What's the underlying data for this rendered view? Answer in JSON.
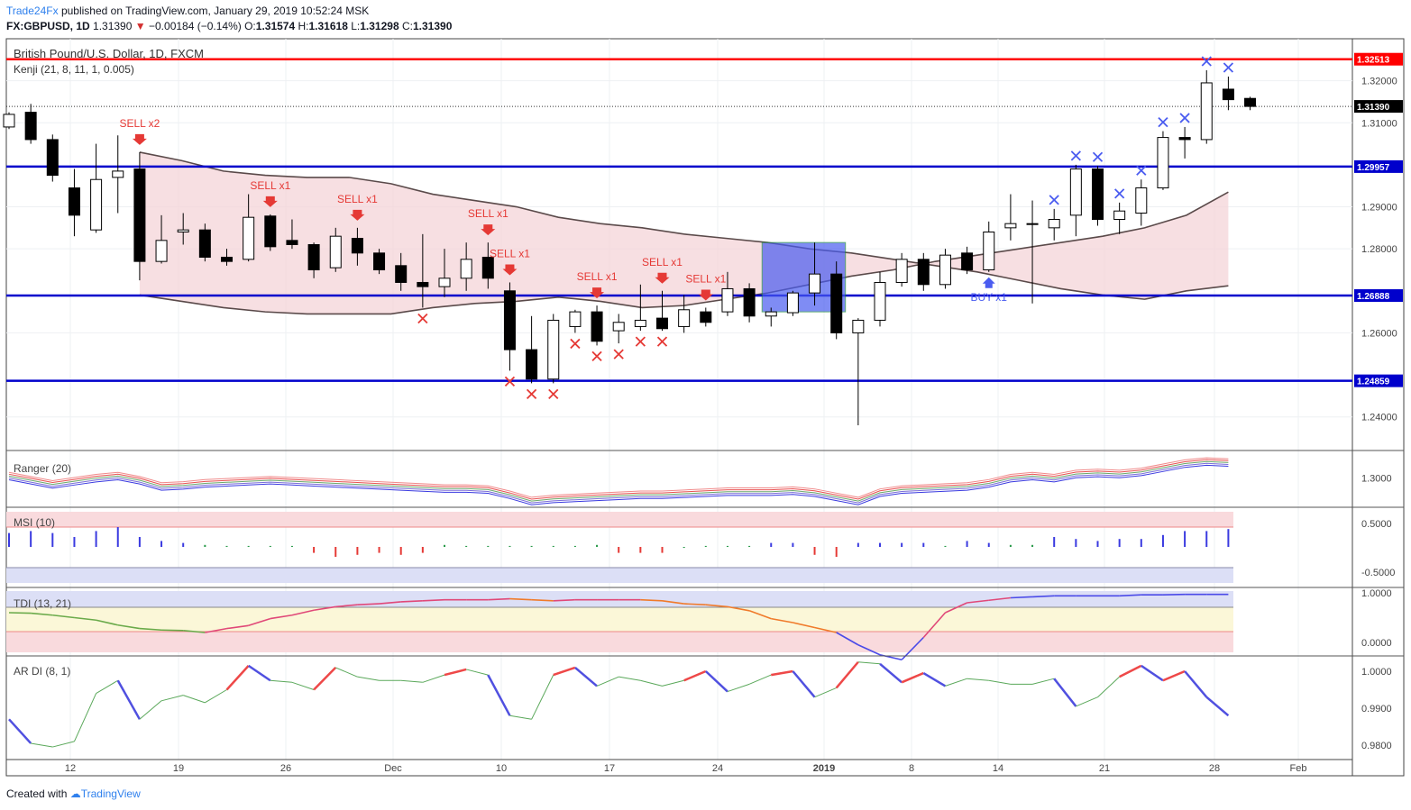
{
  "header": {
    "publisher": "Trade24Fx",
    "published_text": "published on TradingView.com, January 29, 2019 10:52:24 MSK",
    "symbol": "FX:GBPUSD, 1D",
    "last": "1.31390",
    "change": "−0.00184 (−0.14%)",
    "open_label": "O:",
    "open": "1.31574",
    "high_label": "H:",
    "high": "1.31618",
    "low_label": "L:",
    "low": "1.31298",
    "close_label": "C:",
    "close": "1.31390"
  },
  "footer": {
    "created_with": "Created with",
    "brand": "TradingView"
  },
  "colors": {
    "bull": "#ffffff",
    "bear": "#000000",
    "level_red": "#ff0000",
    "level_blue": "#0000cc",
    "sell": "#e53935",
    "buy": "#4a5cf0",
    "kenji_upper": "#f4d4d8",
    "kenji_lower": "#d6d8f5"
  },
  "chart_data": {
    "type": "candlestick",
    "title": "British Pound/U.S. Dollar, 1D, FXCM",
    "indicator_label": "Kenji (21, 8, 11, 1, 0.005)",
    "x_tick_labels": [
      "12",
      "19",
      "26",
      "Dec",
      "10",
      "17",
      "24",
      "2019",
      "8",
      "14",
      "21",
      "28",
      "Feb"
    ],
    "ylim": [
      1.232,
      1.33
    ],
    "y_ticks": [
      "1.32000",
      "1.31000",
      "1.29000",
      "1.28000",
      "1.26000",
      "1.24000"
    ],
    "horizontal_levels": [
      {
        "value": 1.32513,
        "label": "1.32513",
        "color": "red"
      },
      {
        "value": 1.29957,
        "label": "1.29957",
        "color": "blue"
      },
      {
        "value": 1.26888,
        "label": "1.26888",
        "color": "blue"
      },
      {
        "value": 1.24859,
        "label": "1.24859",
        "color": "blue"
      }
    ],
    "last_price": {
      "value": 1.3139,
      "label": "1.31390"
    },
    "candles": [
      [
        1.309,
        1.3125,
        1.3085,
        1.312
      ],
      [
        1.3125,
        1.3145,
        1.305,
        1.306
      ],
      [
        1.306,
        1.3072,
        1.296,
        1.2975
      ],
      [
        1.2945,
        1.299,
        1.283,
        1.288
      ],
      [
        1.2845,
        1.305,
        1.2838,
        1.2965
      ],
      [
        1.297,
        1.307,
        1.2885,
        1.2985
      ],
      [
        1.299,
        1.303,
        1.2725,
        1.277
      ],
      [
        1.277,
        1.288,
        1.2765,
        1.282
      ],
      [
        1.284,
        1.2885,
        1.281,
        1.2845
      ],
      [
        1.2845,
        1.286,
        1.277,
        1.278
      ],
      [
        1.278,
        1.28,
        1.276,
        1.277
      ],
      [
        1.2775,
        1.293,
        1.277,
        1.2875
      ],
      [
        1.2878,
        1.2882,
        1.2795,
        1.2805
      ],
      [
        1.282,
        1.287,
        1.28,
        1.281
      ],
      [
        1.281,
        1.2815,
        1.273,
        1.275
      ],
      [
        1.2755,
        1.285,
        1.2745,
        1.283
      ],
      [
        1.2825,
        1.285,
        1.276,
        1.279
      ],
      [
        1.279,
        1.28,
        1.274,
        1.275
      ],
      [
        1.276,
        1.279,
        1.27,
        1.272
      ],
      [
        1.272,
        1.2835,
        1.266,
        1.271
      ],
      [
        1.271,
        1.28,
        1.2685,
        1.273
      ],
      [
        1.273,
        1.2815,
        1.27,
        1.2775
      ],
      [
        1.278,
        1.2815,
        1.2705,
        1.273
      ],
      [
        1.27,
        1.272,
        1.251,
        1.256
      ],
      [
        1.256,
        1.264,
        1.248,
        1.249
      ],
      [
        1.249,
        1.2645,
        1.248,
        1.263
      ],
      [
        1.2615,
        1.2655,
        1.26,
        1.265
      ],
      [
        1.265,
        1.2665,
        1.257,
        1.258
      ],
      [
        1.2605,
        1.2645,
        1.2575,
        1.2625
      ],
      [
        1.2615,
        1.2715,
        1.2605,
        1.263
      ],
      [
        1.2635,
        1.27,
        1.2605,
        1.261
      ],
      [
        1.2615,
        1.269,
        1.26,
        1.2655
      ],
      [
        1.265,
        1.266,
        1.2615,
        1.2625
      ],
      [
        1.265,
        1.2745,
        1.264,
        1.2705
      ],
      [
        1.2705,
        1.2718,
        1.2625,
        1.264
      ],
      [
        1.264,
        1.266,
        1.2615,
        1.265
      ],
      [
        1.2648,
        1.27,
        1.264,
        1.2695
      ],
      [
        1.2695,
        1.2815,
        1.2665,
        1.274
      ],
      [
        1.274,
        1.277,
        1.2585,
        1.26
      ],
      [
        1.26,
        1.2635,
        1.238,
        1.263
      ],
      [
        1.263,
        1.2745,
        1.2615,
        1.272
      ],
      [
        1.272,
        1.279,
        1.271,
        1.2775
      ],
      [
        1.2775,
        1.279,
        1.27,
        1.2715
      ],
      [
        1.2715,
        1.28,
        1.2705,
        1.2785
      ],
      [
        1.279,
        1.2805,
        1.274,
        1.275
      ],
      [
        1.275,
        1.2865,
        1.2745,
        1.284
      ],
      [
        1.285,
        1.293,
        1.282,
        1.286
      ],
      [
        1.286,
        1.2915,
        1.267,
        1.286
      ],
      [
        1.285,
        1.2895,
        1.282,
        1.287
      ],
      [
        1.288,
        1.3,
        1.283,
        1.299
      ],
      [
        1.299,
        1.2997,
        1.2855,
        1.287
      ],
      [
        1.287,
        1.291,
        1.2835,
        1.289
      ],
      [
        1.2885,
        1.2965,
        1.2855,
        1.2945
      ],
      [
        1.2945,
        1.308,
        1.294,
        1.3065
      ],
      [
        1.3065,
        1.309,
        1.3015,
        1.306
      ],
      [
        1.306,
        1.3225,
        1.305,
        1.3195
      ],
      [
        1.318,
        1.321,
        1.313,
        1.3155
      ],
      [
        1.3158,
        1.3162,
        1.313,
        1.3139
      ]
    ],
    "kenji_upper": [
      1.303,
      1.301,
      1.2985,
      1.2975,
      1.297,
      1.297,
      1.2955,
      1.293,
      1.2915,
      1.29,
      1.2875,
      1.286,
      1.285,
      1.2835,
      1.2825,
      1.2815,
      1.28,
      1.279,
      1.2775,
      1.276,
      1.2745,
      1.2725,
      1.2705,
      1.269,
      1.268,
      1.27,
      1.2712
    ],
    "kenji_lower": [
      1.269,
      1.2675,
      1.266,
      1.265,
      1.2645,
      1.2645,
      1.2645,
      1.266,
      1.267,
      1.2675,
      1.2685,
      1.2675,
      1.266,
      1.2665,
      1.268,
      1.2695,
      1.2715,
      1.2735,
      1.275,
      1.277,
      1.2785,
      1.28,
      1.2815,
      1.283,
      1.285,
      1.288,
      1.2935
    ],
    "signals": [
      {
        "label": "SELL x2",
        "type": "sell",
        "bar": 6
      },
      {
        "label": "SELL x1",
        "type": "sell",
        "bar": 12
      },
      {
        "label": "SELL x1",
        "type": "sell",
        "bar": 16
      },
      {
        "label": "SELL x1",
        "type": "sell",
        "bar": 22
      },
      {
        "label": "SELL x1",
        "type": "sell",
        "bar": 23
      },
      {
        "label": "SELL x1",
        "type": "sell",
        "bar": 27
      },
      {
        "label": "SELL x1",
        "type": "sell",
        "bar": 30
      },
      {
        "label": "SELL x1",
        "type": "sell",
        "bar": 32
      },
      {
        "label": "BUY x1",
        "type": "buy",
        "bar": 45
      }
    ],
    "highlight_box": {
      "bar_from": 35,
      "bar_to": 38,
      "high": 1.2815,
      "low": 1.265
    },
    "panes": [
      {
        "name": "Ranger (20)",
        "ticks": [
          "1.3000"
        ]
      },
      {
        "name": "MSI (10)",
        "ticks": [
          "0.5000",
          "-0.5000"
        ]
      },
      {
        "name": "TDI (13, 21)",
        "ticks": [
          "1.0000",
          "0.0000"
        ]
      },
      {
        "name": "AR DI (8, 1)",
        "ticks": [
          "1.0000",
          "0.9900",
          "0.9800"
        ]
      }
    ],
    "ranger": [
      1.301,
      1.299,
      1.297,
      1.2985,
      1.3,
      1.301,
      1.299,
      1.296,
      1.2965,
      1.2975,
      1.298,
      1.2985,
      1.299,
      1.2985,
      1.298,
      1.2975,
      1.297,
      1.2965,
      1.296,
      1.2955,
      1.295,
      1.295,
      1.2945,
      1.292,
      1.289,
      1.29,
      1.2905,
      1.291,
      1.2915,
      1.292,
      1.292,
      1.2925,
      1.293,
      1.2935,
      1.2935,
      1.2935,
      1.294,
      1.293,
      1.291,
      1.289,
      1.293,
      1.2945,
      1.295,
      1.2955,
      1.296,
      1.2975,
      1.3,
      1.301,
      1.3,
      1.302,
      1.3025,
      1.302,
      1.303,
      1.305,
      1.307,
      1.308,
      1.3075
    ],
    "msi": [
      0.7,
      0.8,
      0.7,
      0.5,
      0.8,
      1.0,
      0.5,
      0.3,
      0.2,
      0.1,
      0.05,
      0.05,
      0.05,
      0.05,
      -0.3,
      -0.5,
      -0.4,
      -0.3,
      -0.4,
      -0.3,
      0.1,
      0.05,
      0.05,
      0.05,
      0.05,
      0.05,
      0.05,
      0.1,
      -0.3,
      -0.3,
      -0.3,
      -0.05,
      0.05,
      0.05,
      0.05,
      0.2,
      0.2,
      -0.4,
      -0.5,
      0.2,
      0.2,
      0.2,
      0.2,
      0.05,
      0.3,
      0.2,
      0.1,
      0.1,
      0.5,
      0.4,
      0.3,
      0.4,
      0.4,
      0.6,
      0.8,
      0.8,
      0.9
    ],
    "tdi": [
      0.6,
      0.59,
      0.55,
      0.5,
      0.45,
      0.35,
      0.28,
      0.25,
      0.24,
      0.2,
      0.28,
      0.34,
      0.48,
      0.55,
      0.65,
      0.72,
      0.76,
      0.78,
      0.82,
      0.84,
      0.86,
      0.86,
      0.86,
      0.88,
      0.86,
      0.84,
      0.86,
      0.86,
      0.86,
      0.86,
      0.84,
      0.78,
      0.76,
      0.72,
      0.64,
      0.48,
      0.4,
      0.3,
      0.2,
      -0.05,
      -0.25,
      -0.35,
      0.1,
      0.6,
      0.8,
      0.85,
      0.9,
      0.92,
      0.94,
      0.94,
      0.94,
      0.94,
      0.96,
      0.96,
      0.97,
      0.97,
      0.97
    ],
    "ardi": [
      0.987,
      0.9805,
      0.9795,
      0.981,
      0.994,
      0.9975,
      0.987,
      0.992,
      0.9935,
      0.9915,
      0.995,
      1.0015,
      0.9975,
      0.997,
      0.995,
      1.001,
      0.9985,
      0.9975,
      0.9975,
      0.997,
      0.999,
      1.0005,
      0.999,
      0.988,
      0.987,
      0.999,
      1.001,
      0.996,
      0.9985,
      0.9975,
      0.996,
      0.9975,
      1.0,
      0.9945,
      0.9965,
      0.999,
      1.0,
      0.993,
      0.9955,
      1.0025,
      1.002,
      0.997,
      0.9995,
      0.996,
      0.998,
      0.9975,
      0.9965,
      0.9965,
      0.998,
      0.9905,
      0.993,
      0.9985,
      1.0015,
      0.9975,
      1.0,
      0.993,
      0.988
    ]
  }
}
